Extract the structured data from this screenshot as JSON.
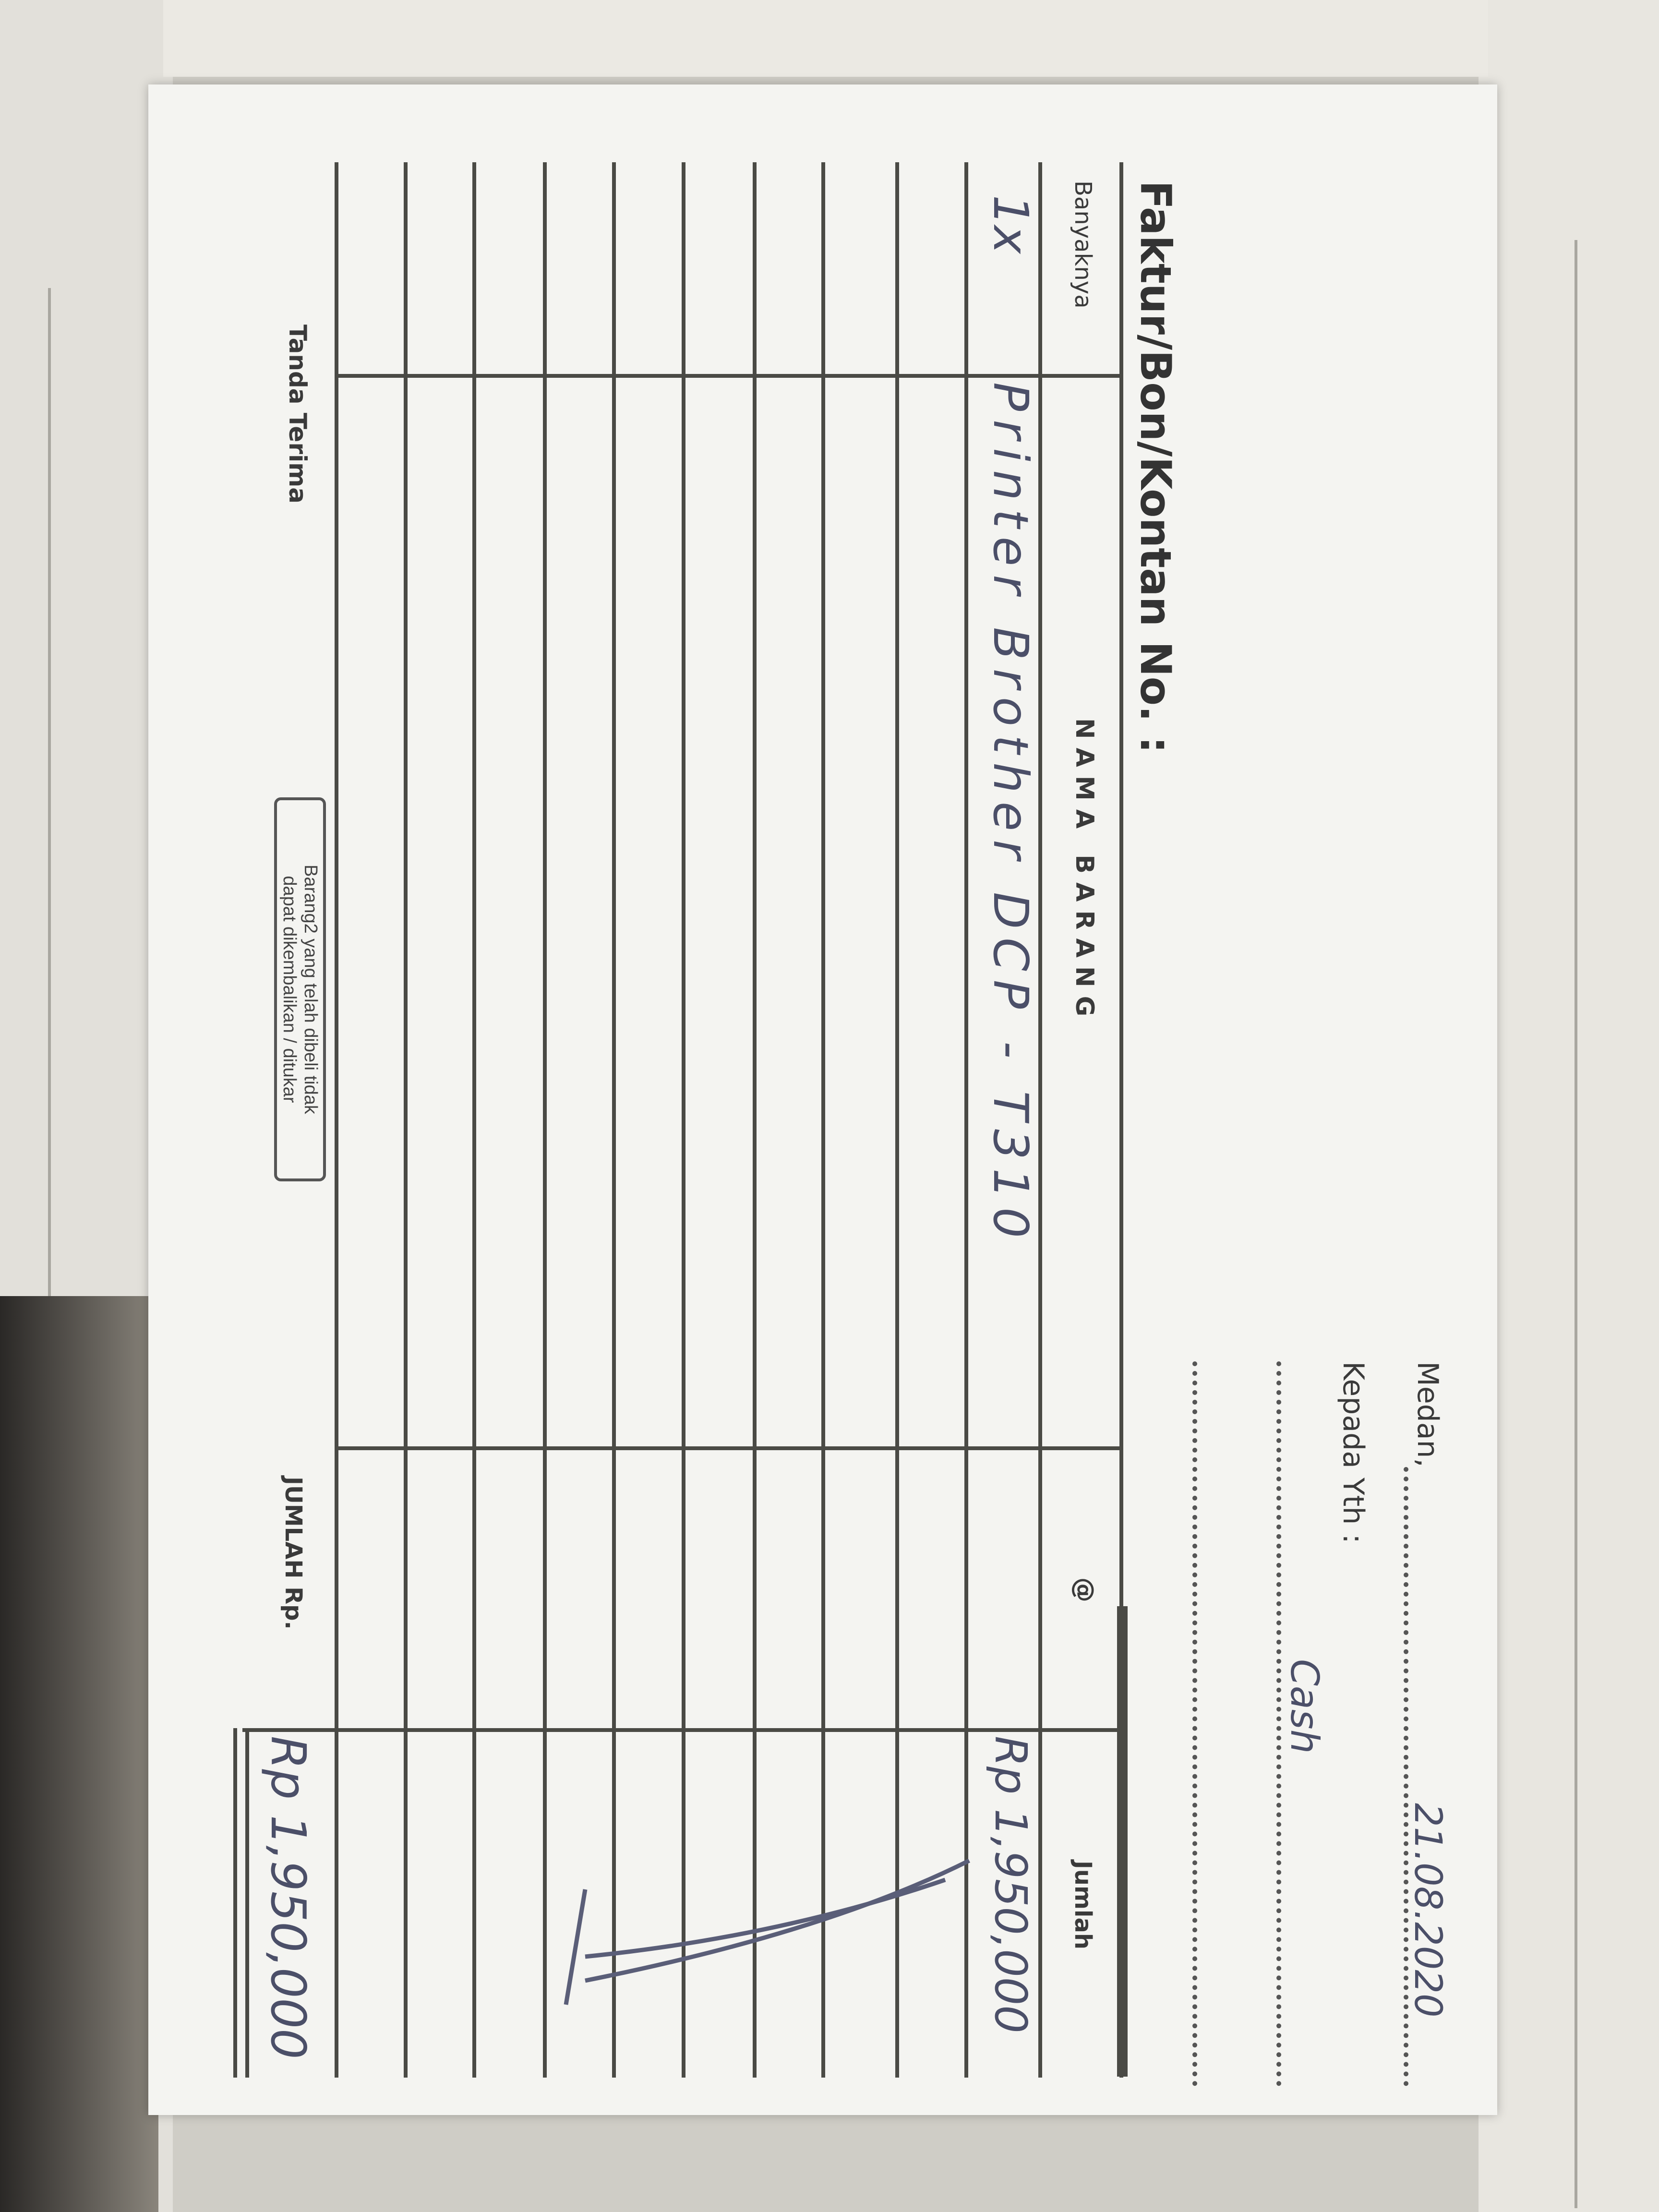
{
  "form": {
    "city_label": "Medan,",
    "date": "21.08.2020",
    "recipient_label": "Kepada Yth :",
    "recipient": "Cash",
    "title": "Faktur/Bon/Kontan No. :"
  },
  "table": {
    "headers": [
      "Banyaknya",
      "N A M A   B A R A N G",
      "@",
      "Jumlah"
    ],
    "rows": [
      {
        "qty": "1x",
        "item": "Printer Brother DCP - T310",
        "price": "",
        "amount": "Rp 1,950,000"
      }
    ]
  },
  "footer": {
    "signature_label": "Tanda Terima",
    "notice_line1": "Barang2 yang telah dibeli tidak",
    "notice_line2": "dapat dikembalikan / ditukar",
    "total_label": "JUMLAH Rp.",
    "total": "Rp 1,950,000"
  },
  "colors": {
    "paper": "#f4f4f1",
    "ink_print": "#3a3a3a",
    "ink_handwriting": "#4b4f68"
  }
}
